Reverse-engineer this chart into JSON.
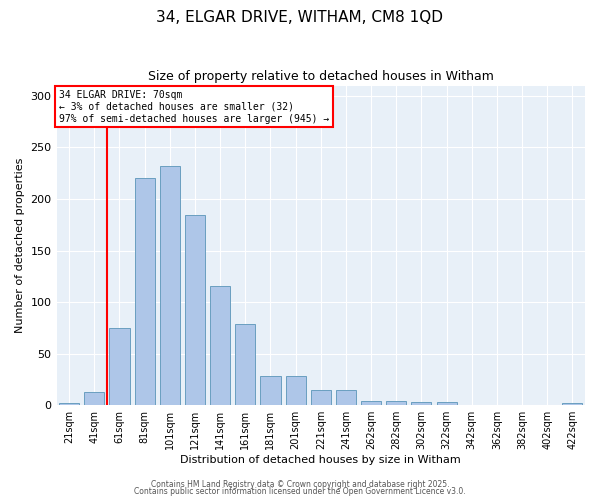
{
  "title1": "34, ELGAR DRIVE, WITHAM, CM8 1QD",
  "title2": "Size of property relative to detached houses in Witham",
  "xlabel": "Distribution of detached houses by size in Witham",
  "ylabel": "Number of detached properties",
  "categories": [
    "21sqm",
    "41sqm",
    "61sqm",
    "81sqm",
    "101sqm",
    "121sqm",
    "141sqm",
    "161sqm",
    "181sqm",
    "201sqm",
    "221sqm",
    "241sqm",
    "262sqm",
    "282sqm",
    "302sqm",
    "322sqm",
    "342sqm",
    "362sqm",
    "382sqm",
    "402sqm",
    "422sqm"
  ],
  "values": [
    2,
    13,
    75,
    220,
    232,
    184,
    116,
    79,
    28,
    28,
    15,
    15,
    4,
    4,
    3,
    3,
    0,
    0,
    0,
    0,
    2
  ],
  "bar_color": "#aec6e8",
  "bar_edge_color": "#6a9fc0",
  "ylim": [
    0,
    310
  ],
  "yticks": [
    0,
    50,
    100,
    150,
    200,
    250,
    300
  ],
  "annotation_title": "34 ELGAR DRIVE: 70sqm",
  "annotation_line1": "← 3% of detached houses are smaller (32)",
  "annotation_line2": "97% of semi-detached houses are larger (945) →",
  "bg_color": "#e8f0f8",
  "footer1": "Contains HM Land Registry data © Crown copyright and database right 2025.",
  "footer2": "Contains public sector information licensed under the Open Government Licence v3.0.",
  "red_line_x": 1.5
}
